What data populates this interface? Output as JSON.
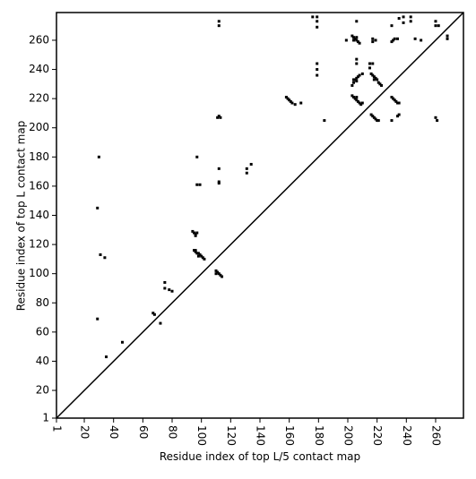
{
  "chart_data": {
    "type": "scatter",
    "xlabel": "Residue index of top L/5 contact map",
    "ylabel": "Residue index of top L contact map",
    "xlim": [
      1,
      279
    ],
    "ylim": [
      1,
      279
    ],
    "xticks": [
      1,
      20,
      40,
      60,
      80,
      100,
      120,
      140,
      160,
      180,
      200,
      220,
      240,
      260
    ],
    "yticks": [
      1,
      20,
      40,
      60,
      80,
      100,
      120,
      140,
      160,
      180,
      200,
      220,
      240,
      260
    ],
    "series": [
      {
        "color": "#000000",
        "marker": "square",
        "x": [
          30,
          29,
          31,
          34,
          29,
          35,
          46,
          67,
          68,
          72,
          75,
          75,
          78,
          80,
          94,
          95,
          96,
          97,
          96,
          97,
          97,
          99,
          112,
          112,
          112,
          112,
          112,
          131,
          134,
          131,
          176,
          179,
          179,
          179,
          179,
          179,
          179,
          199,
          203,
          204,
          205,
          206,
          207,
          208,
          204,
          206,
          206,
          206,
          206,
          215,
          217,
          215,
          217,
          219,
          217,
          203,
          204,
          205,
          206,
          207,
          208,
          210,
          204,
          206,
          216,
          217,
          218,
          219,
          220,
          221,
          222,
          223,
          218,
          230,
          231,
          232,
          234,
          230,
          235,
          238,
          243,
          238,
          243,
          246,
          250,
          260,
          260,
          262,
          268,
          268,
          95,
          96,
          97,
          98,
          99,
          100,
          101,
          102,
          96,
          98,
          110,
          111,
          112,
          113,
          114,
          110,
          111,
          113,
          112,
          158,
          159,
          160,
          161,
          162,
          164,
          168,
          184,
          203,
          204,
          205,
          206,
          207,
          208,
          209,
          210,
          206,
          216,
          217,
          218,
          219,
          220,
          221,
          230,
          231,
          232,
          233,
          234,
          235,
          230,
          234,
          235,
          260,
          261
        ],
        "values": [
          180,
          145,
          113,
          111,
          69,
          43,
          53,
          73,
          72,
          66,
          94,
          90,
          89,
          88,
          129,
          128,
          127,
          128,
          126,
          180,
          161,
          161,
          162,
          163,
          172,
          273,
          270,
          172,
          175,
          169,
          276,
          276,
          273,
          269,
          244,
          240,
          236,
          260,
          263,
          262,
          261,
          260,
          259,
          258,
          260,
          262,
          273,
          247,
          244,
          244,
          244,
          241,
          261,
          260,
          259,
          229,
          231,
          233,
          234,
          235,
          236,
          237,
          233,
          232,
          237,
          236,
          235,
          234,
          233,
          231,
          230,
          229,
          233,
          259,
          260,
          261,
          261,
          270,
          275,
          276,
          276,
          272,
          273,
          261,
          260,
          273,
          270,
          270,
          263,
          261,
          116,
          115,
          114,
          114,
          113,
          112,
          111,
          110,
          116,
          112,
          102,
          101,
          100,
          99,
          98,
          100,
          207,
          207,
          208,
          221,
          220,
          219,
          218,
          217,
          216,
          217,
          205,
          222,
          221,
          220,
          219,
          218,
          217,
          216,
          217,
          221,
          209,
          208,
          207,
          206,
          205,
          205,
          221,
          220,
          219,
          218,
          217,
          217,
          205,
          208,
          209,
          207,
          205
        ]
      },
      {
        "color": "#000000",
        "line": true,
        "x": [
          1,
          279
        ],
        "values": [
          1,
          279
        ]
      }
    ]
  }
}
